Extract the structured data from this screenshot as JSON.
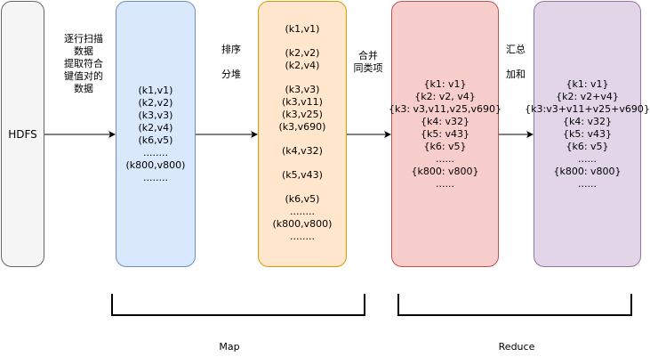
{
  "colors": {
    "hdfs_fill": "#f5f5f5",
    "hdfs_stroke": "#666666",
    "map_fill": "#dae8fc",
    "map_stroke": "#6c8ebf",
    "shuffle_fill": "#ffe6cc",
    "shuffle_stroke": "#d79b00",
    "reduce_in_fill": "#f8cecc",
    "reduce_in_stroke": "#b85450",
    "reduce_out_fill": "#e1d5e7",
    "reduce_out_stroke": "#9673a6",
    "line": "#000000"
  },
  "hdfs": {
    "label": "HDFS"
  },
  "step_scan": {
    "lines": [
      "逐行扫描",
      "数据",
      "提取符合",
      "键值对的",
      "数据"
    ]
  },
  "step_sort": {
    "line1": "排序",
    "line2": "分堆"
  },
  "step_merge": {
    "line1": "合并",
    "line2": "同类项"
  },
  "step_sum": {
    "line1": "汇总",
    "line2": "加和"
  },
  "map_input": {
    "lines": [
      "(k1,v1)",
      "(k2,v2)",
      "(k3,v3)",
      "(k2,v4)",
      "(k6,v5)",
      "........",
      "(k800,v800)",
      "........"
    ]
  },
  "shuffle": {
    "groups": [
      [
        "(k1,v1)"
      ],
      [
        "(k2,v2)",
        "(k2,v4)"
      ],
      [
        "(k3,v3)",
        "(k3,v11)",
        "(k3,v25)",
        "(k3,v690)"
      ],
      [
        "(k4,v32)"
      ],
      [
        "(k5,v43)"
      ],
      [
        "(k6,v5)",
        "........",
        "(k800,v800)",
        "........"
      ]
    ]
  },
  "reduce_in": {
    "lines": [
      "{k1: v1}",
      "{k2: v2, v4}",
      "{k3: v3,v11,v25,v690}",
      "{k4: v32}",
      "{k5: v43}",
      "{k6: v5}",
      "......",
      "{k800: v800}",
      "......"
    ]
  },
  "reduce_out": {
    "lines": [
      "{k1: v1}",
      "{k2: v2+v4}",
      "{k3:v3+v11+v25+v690}",
      "{k4: v32}",
      "{k5: v43}",
      "{k6: v5}",
      "......",
      "{k800: v800}",
      "......"
    ]
  },
  "phase_map": {
    "label": "Map"
  },
  "phase_reduce": {
    "label": "Reduce"
  }
}
